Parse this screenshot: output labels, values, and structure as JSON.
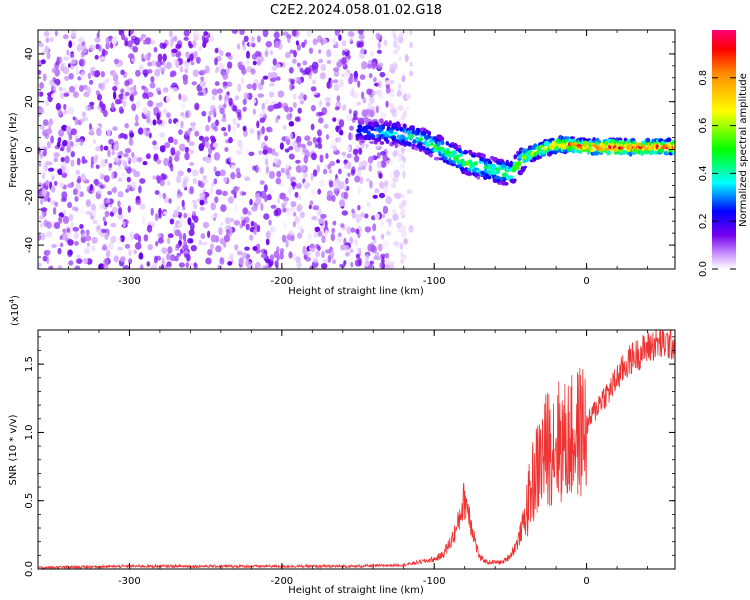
{
  "title": "C2E2.2024.058.01.02.G18",
  "chart_data": [
    {
      "type": "heatmap",
      "xlabel": "Height of straight line (km)",
      "ylabel": "Frequency (Hz)",
      "xlim": [
        -360,
        58
      ],
      "ylim": [
        -50,
        50
      ],
      "xticks": [
        -300,
        -200,
        -100,
        0
      ],
      "xtick_labels": [
        "-300",
        "-200",
        "-100",
        "0"
      ],
      "yticks": [
        -40,
        -20,
        0,
        20,
        40
      ],
      "ytick_labels": [
        "-40",
        "-20",
        "0",
        "20",
        "40"
      ],
      "colorbar": {
        "label": "Normalized spectral amplitude",
        "range": [
          0,
          1
        ],
        "ticks": [
          0.0,
          0.2,
          0.4,
          0.6,
          0.8
        ],
        "tick_labels": [
          "0.0",
          "0.2",
          "0.4",
          "0.6",
          "0.8"
        ]
      },
      "signal_track": {
        "x": [
          -150,
          -130,
          -110,
          -95,
          -80,
          -65,
          -50,
          -40,
          -30,
          -20,
          -10,
          0,
          20,
          40,
          58
        ],
        "y": [
          8,
          7,
          5,
          0,
          -5,
          -8,
          -10,
          -3,
          0,
          2,
          2,
          1,
          1,
          1,
          1
        ],
        "amplitude": [
          0.3,
          0.4,
          0.45,
          0.5,
          0.55,
          0.5,
          0.55,
          0.6,
          0.7,
          0.85,
          0.9,
          0.9,
          0.95,
          0.95,
          0.95
        ]
      },
      "noise_region": {
        "x_from": -360,
        "x_to": -130,
        "amplitude_max": 0.15
      }
    },
    {
      "type": "line",
      "xlabel": "Height of straight line (km)",
      "ylabel": "SNR (10 * v/v)",
      "y_multiplier_label": "(x10",
      "y_multiplier_exp": "4",
      "y_multiplier_close": ")",
      "xlim": [
        -360,
        58
      ],
      "ylim": [
        0,
        1.75
      ],
      "xticks": [
        -300,
        -200,
        -100,
        0
      ],
      "xtick_labels": [
        "-300",
        "-200",
        "-100",
        "0"
      ],
      "yticks": [
        0,
        0.5,
        1.0,
        1.5
      ],
      "ytick_labels": [
        "0.0",
        "0.5",
        "1.0",
        "1.5"
      ],
      "color": "#ee3333",
      "series": [
        {
          "x": [
            -360,
            -300,
            -250,
            -200,
            -150,
            -120,
            -100,
            -95,
            -90,
            -85,
            -82,
            -80,
            -78,
            -75,
            -72,
            -70,
            -65,
            -60,
            -55,
            -50,
            -45,
            -40,
            -35,
            -30,
            -25,
            -20,
            -15,
            -10,
            -5,
            0,
            5,
            10,
            15,
            20,
            25,
            30,
            35,
            40,
            45,
            50,
            58
          ],
          "y": [
            0.01,
            0.02,
            0.02,
            0.02,
            0.02,
            0.03,
            0.07,
            0.1,
            0.18,
            0.3,
            0.45,
            0.52,
            0.45,
            0.3,
            0.15,
            0.08,
            0.05,
            0.05,
            0.05,
            0.1,
            0.2,
            0.4,
            0.65,
            0.8,
            0.9,
            0.95,
            0.92,
            0.95,
            1.0,
            1.05,
            1.15,
            1.25,
            1.3,
            1.4,
            1.48,
            1.55,
            1.58,
            1.62,
            1.65,
            1.65,
            1.65
          ]
        }
      ]
    }
  ]
}
